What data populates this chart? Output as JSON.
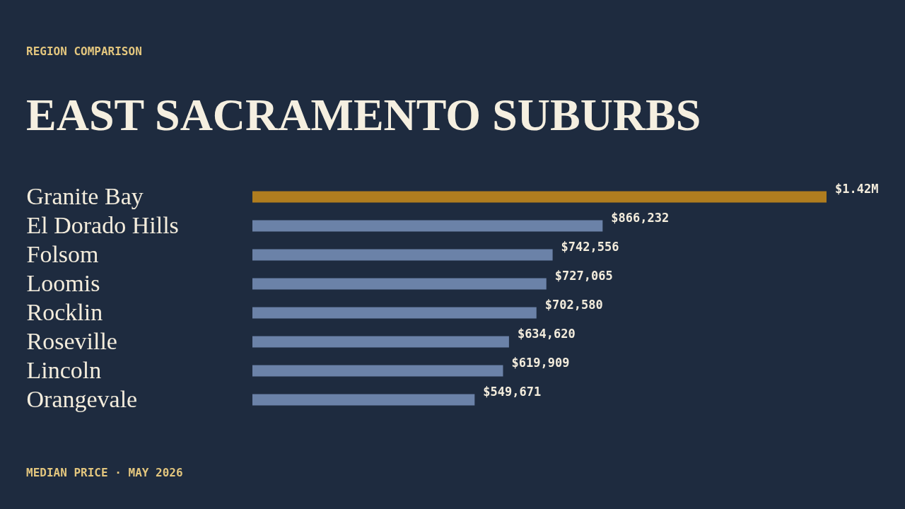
{
  "chart_data": {
    "type": "bar",
    "orientation": "horizontal",
    "title": "EAST SACRAMENTO SUBURBS",
    "subtitle": "REGION COMPARISON",
    "categories": [
      "Granite Bay",
      "El Dorado Hills",
      "Folsom",
      "Loomis",
      "Rocklin",
      "Roseville",
      "Lincoln",
      "Orangevale"
    ],
    "values": [
      1420000,
      866232,
      742556,
      727065,
      702580,
      634620,
      619909,
      549671
    ],
    "colors": [
      "#b07d1f",
      "#6b82a8",
      "#6b82a8",
      "#6b82a8",
      "#6b82a8",
      "#6b82a8",
      "#6b82a8",
      "#6b82a8"
    ],
    "value_labels": [
      "$1.42M",
      "$866,232",
      "$742,556",
      "$727,065",
      "$702,580",
      "$634,620",
      "$619,909",
      "$549,671"
    ],
    "tick_labels": "y",
    "annotations": [
      "MEDIAN PRICE · MAY 2026"
    ]
  }
}
